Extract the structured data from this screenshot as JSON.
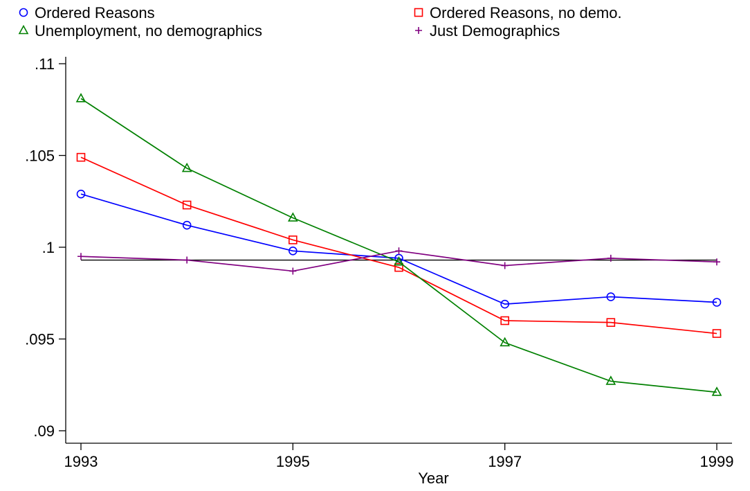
{
  "chart_data": {
    "type": "line",
    "title": "",
    "xlabel": "Year",
    "ylabel": "",
    "x": [
      1993,
      1994,
      1995,
      1996,
      1997,
      1998,
      1999
    ],
    "xticks": [
      1993,
      1995,
      1997,
      1999
    ],
    "xtick_labels": [
      "1993",
      "1995",
      "1997",
      "1999"
    ],
    "yticks": [
      0.09,
      0.095,
      0.1,
      0.105,
      0.11
    ],
    "ytick_labels": [
      ".09",
      ".095",
      ".1",
      ".105",
      ".11"
    ],
    "xlim": [
      1993,
      1999
    ],
    "ylim": [
      0.09,
      0.11
    ],
    "grid": false,
    "legend_position": "top",
    "reference_line": {
      "y": 0.0993,
      "color": "#000000"
    },
    "series": [
      {
        "name": "Ordered Reasons",
        "color": "#0000ff",
        "marker": "circle",
        "values": [
          0.1029,
          0.1012,
          0.0998,
          0.0994,
          0.0969,
          0.0973,
          0.097
        ]
      },
      {
        "name": "Ordered Reasons, no demo.",
        "color": "#ff0000",
        "marker": "square",
        "values": [
          0.1049,
          0.1023,
          0.1004,
          0.0989,
          0.096,
          0.0959,
          0.0953
        ]
      },
      {
        "name": "Unemployment, no demographics",
        "color": "#008000",
        "marker": "triangle",
        "values": [
          0.1081,
          0.1043,
          0.1016,
          0.0992,
          0.0948,
          0.0927,
          0.0921
        ]
      },
      {
        "name": "Just Demographics",
        "color": "#800080",
        "marker": "plus",
        "values": [
          0.0995,
          0.0993,
          0.0987,
          0.0998,
          0.099,
          0.0994,
          0.0992
        ]
      }
    ]
  }
}
